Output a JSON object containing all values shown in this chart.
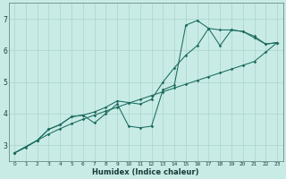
{
  "xlabel": "Humidex (Indice chaleur)",
  "ylabel": "",
  "xlim": [
    -0.5,
    23.5
  ],
  "ylim": [
    2.5,
    7.5
  ],
  "xticks": [
    0,
    1,
    2,
    3,
    4,
    5,
    6,
    7,
    8,
    9,
    10,
    11,
    12,
    13,
    14,
    15,
    16,
    17,
    18,
    19,
    20,
    21,
    22,
    23
  ],
  "yticks": [
    3,
    4,
    5,
    6,
    7
  ],
  "bg_color": "#c8ebe6",
  "line_color": "#1a6b5e",
  "grid_color": "#aad4ce",
  "line1_x": [
    0,
    1,
    2,
    3,
    4,
    5,
    6,
    7,
    8,
    9,
    10,
    11,
    12,
    13,
    14,
    15,
    16,
    17,
    18,
    19,
    20,
    21,
    22,
    23
  ],
  "line1_y": [
    2.75,
    2.93,
    3.15,
    3.35,
    3.52,
    3.68,
    3.82,
    3.95,
    4.08,
    4.2,
    4.33,
    4.45,
    4.57,
    4.69,
    4.81,
    4.93,
    5.05,
    5.17,
    5.29,
    5.41,
    5.53,
    5.65,
    5.95,
    6.25
  ],
  "line2_x": [
    0,
    2,
    3,
    4,
    5,
    6,
    7,
    8,
    9,
    10,
    11,
    12,
    13,
    14,
    15,
    16,
    17,
    18,
    19,
    20,
    21,
    22,
    23
  ],
  "line2_y": [
    2.75,
    3.15,
    3.5,
    3.65,
    3.9,
    3.95,
    3.7,
    4.0,
    4.3,
    3.6,
    3.55,
    3.6,
    4.75,
    4.9,
    6.8,
    6.95,
    6.7,
    6.65,
    6.65,
    6.6,
    6.45,
    6.2,
    6.25
  ],
  "line3_x": [
    0,
    2,
    3,
    4,
    5,
    6,
    7,
    8,
    9,
    10,
    11,
    12,
    13,
    14,
    15,
    16,
    17,
    18,
    19,
    20,
    21,
    22,
    23
  ],
  "line3_y": [
    2.75,
    3.15,
    3.5,
    3.65,
    3.9,
    3.95,
    4.05,
    4.2,
    4.4,
    4.35,
    4.3,
    4.45,
    5.0,
    5.45,
    5.85,
    6.15,
    6.7,
    6.15,
    6.65,
    6.6,
    6.4,
    6.2,
    6.25
  ]
}
